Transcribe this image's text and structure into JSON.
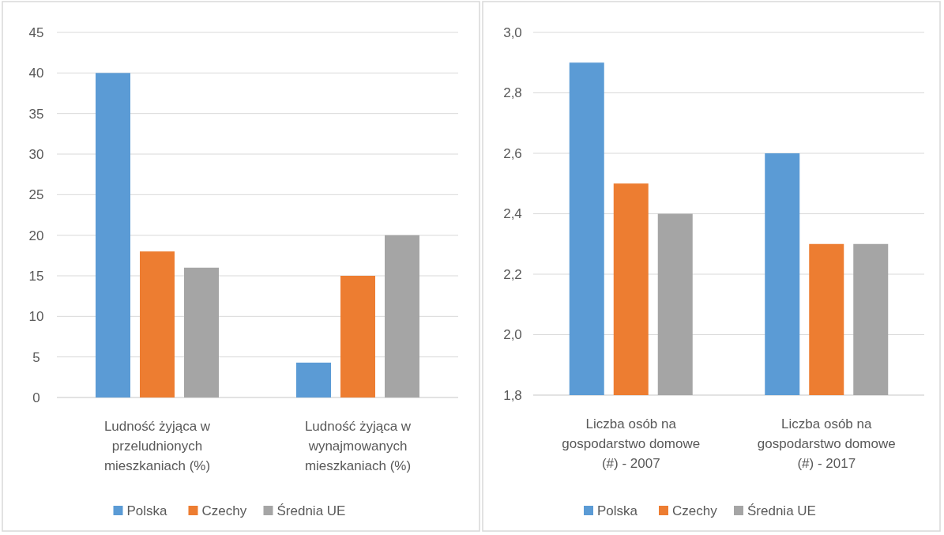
{
  "chart_data": [
    {
      "type": "bar",
      "categories": [
        "Ludność żyjąca w przeludnionych mieszkaniach (%)",
        "Ludność żyjąca w wynajmowanych mieszkaniach (%)"
      ],
      "series": [
        {
          "name": "Polska",
          "color": "#5b9bd5",
          "values": [
            40,
            4.3
          ]
        },
        {
          "name": "Czechy",
          "color": "#ed7d31",
          "values": [
            18,
            15
          ]
        },
        {
          "name": "Średnia UE",
          "color": "#a5a5a5",
          "values": [
            16,
            20
          ]
        }
      ],
      "ylim": [
        0,
        45
      ],
      "yticks": [
        0,
        5,
        10,
        15,
        20,
        25,
        30,
        35,
        40,
        45
      ],
      "grid": "y",
      "legend": "bottom"
    },
    {
      "type": "bar",
      "categories": [
        "Liczba osób na gospodarstwo domowe (#) - 2007",
        "Liczba osób na gospodarstwo domowe (#) - 2017"
      ],
      "series": [
        {
          "name": "Polska",
          "color": "#5b9bd5",
          "values": [
            2.9,
            2.6
          ]
        },
        {
          "name": "Czechy",
          "color": "#ed7d31",
          "values": [
            2.5,
            2.3
          ]
        },
        {
          "name": "Średnia UE",
          "color": "#a5a5a5",
          "values": [
            2.4,
            2.3
          ]
        }
      ],
      "ylim": [
        1.8,
        3.0
      ],
      "yticks": [
        {
          "value": 1.8,
          "label": "1,8"
        },
        {
          "value": 2.0,
          "label": "2,0"
        },
        {
          "value": 2.2,
          "label": "2,2"
        },
        {
          "value": 2.4,
          "label": "2,4"
        },
        {
          "value": 2.6,
          "label": "2,6"
        },
        {
          "value": 2.8,
          "label": "2,8"
        },
        {
          "value": 3.0,
          "label": "3,0"
        }
      ],
      "grid": "y",
      "legend": "bottom"
    }
  ]
}
